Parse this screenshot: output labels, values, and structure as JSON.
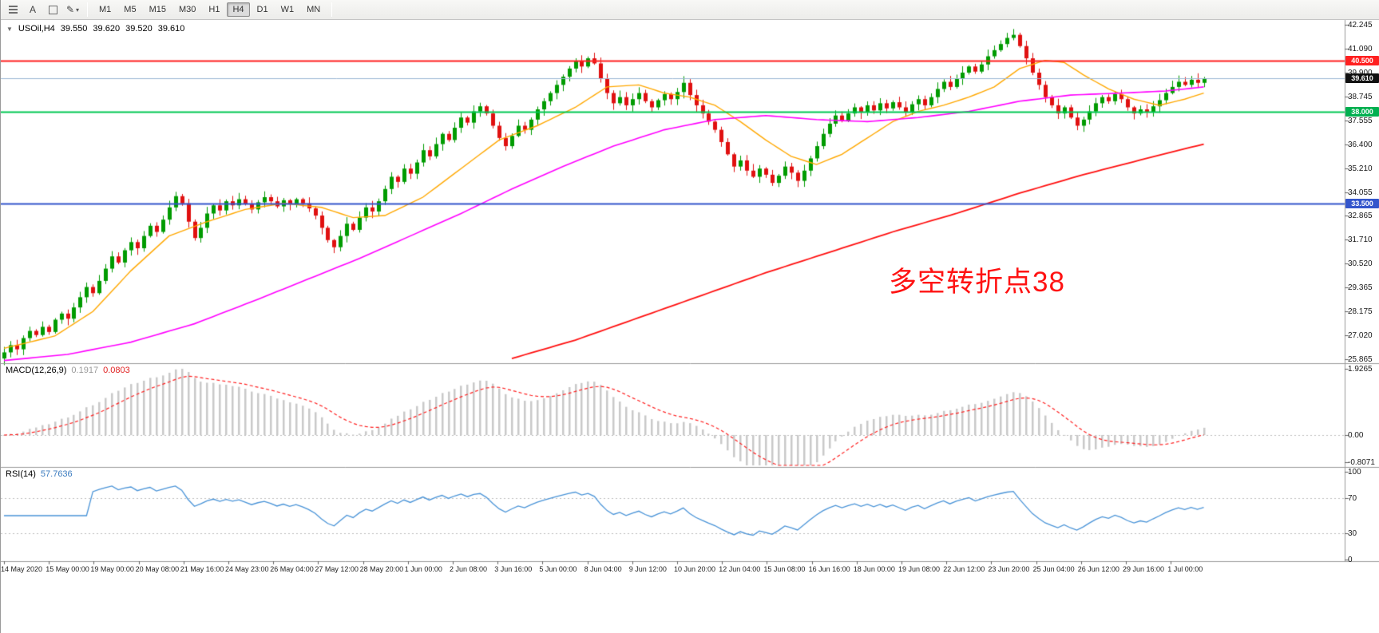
{
  "toolbar": {
    "left_icons": [
      "chart-list-icon",
      "text-tool-icon",
      "frame-tool-icon",
      "draw-color-icon",
      "chevron-down-icon"
    ],
    "text_tool_label": "A",
    "timeframes": [
      "M1",
      "M5",
      "M15",
      "M30",
      "H1",
      "H4",
      "D1",
      "W1",
      "MN"
    ],
    "active_timeframe": "H4"
  },
  "chart_header": {
    "dropdown_icon": "▼",
    "symbol_period": "USOil,H4",
    "open": "39.550",
    "high": "39.620",
    "low": "39.520",
    "close": "39.610"
  },
  "annotation": {
    "text": "多空转折点38",
    "color": "#ff1212"
  },
  "price_axis": {
    "labels": [
      "42.245",
      "41.090",
      "39.900",
      "38.745",
      "37.555",
      "36.400",
      "35.210",
      "34.055",
      "32.865",
      "31.710",
      "30.520",
      "29.365",
      "28.175",
      "27.020",
      "25.865"
    ],
    "max": 42.245,
    "min": 25.865
  },
  "levels": [
    {
      "label": "40.500",
      "price": 40.5,
      "line_color": "#ff2020",
      "tag_bg": "#ff2020",
      "line_width": 2
    },
    {
      "label": "39.610",
      "price": 39.61,
      "line_color": "#9bb7d4",
      "tag_bg": "#111111",
      "line_width": 1
    },
    {
      "label": "38.000",
      "price": 38.0,
      "line_color": "#00c853",
      "tag_bg": "#00b050",
      "line_width": 2
    },
    {
      "label": "33.500",
      "price": 33.5,
      "line_color": "#3355cc",
      "tag_bg": "#3355cc",
      "line_width": 2
    }
  ],
  "time_axis": {
    "labels": [
      "14 May 2020",
      "15 May 00:00",
      "19 May 00:00",
      "20 May 08:00",
      "21 May 16:00",
      "24 May 23:00",
      "26 May 04:00",
      "27 May 12:00",
      "28 May 20:00",
      "1 Jun 00:00",
      "2 Jun 08:00",
      "3 Jun 16:00",
      "5 Jun 00:00",
      "8 Jun 04:00",
      "9 Jun 12:00",
      "10 Jun 20:00",
      "12 Jun 04:00",
      "15 Jun 08:00",
      "16 Jun 16:00",
      "18 Jun 00:00",
      "19 Jun 08:00",
      "22 Jun 12:00",
      "23 Jun 20:00",
      "25 Jun 04:00",
      "26 Jun 12:00",
      "29 Jun 16:00",
      "1 Jul 00:00"
    ]
  },
  "macd_panel": {
    "label": "MACD(12,26,9)",
    "macd_value": "0.1917",
    "signal_value": "0.0803",
    "scale_labels": [
      "1.9265",
      "0.00",
      "-0.8071"
    ],
    "scale_max": 1.9265,
    "scale_min": -0.8071
  },
  "rsi_panel": {
    "label": "RSI(14)",
    "value": "57.7636",
    "scale_labels": [
      "100",
      "70",
      "30",
      "0"
    ],
    "scale_values": [
      100,
      70,
      30,
      0
    ],
    "level_lines": [
      70,
      30
    ]
  },
  "chart_data": {
    "type": "candlestick",
    "title": "USOil H4 candlestick chart with MA lines, MACD(12,26,9) and RSI(14) sub-panels",
    "symbol": "USOil",
    "timeframe": "H4",
    "price_range": [
      25.865,
      42.245
    ],
    "ohlc_current": {
      "open": 39.55,
      "high": 39.62,
      "low": 39.52,
      "close": 39.61
    },
    "closes": [
      26.2,
      26.55,
      26.35,
      26.9,
      27.25,
      27.05,
      27.45,
      27.2,
      27.8,
      28.1,
      27.85,
      28.4,
      28.9,
      29.4,
      29.1,
      29.7,
      30.3,
      30.9,
      30.6,
      31.2,
      31.6,
      31.3,
      31.9,
      32.4,
      32.1,
      32.7,
      33.3,
      33.85,
      33.5,
      32.6,
      31.8,
      32.3,
      33.0,
      33.4,
      33.15,
      33.6,
      33.4,
      33.7,
      33.45,
      33.2,
      33.55,
      33.8,
      33.6,
      33.35,
      33.65,
      33.45,
      33.7,
      33.5,
      33.25,
      32.9,
      32.3,
      31.7,
      31.35,
      31.9,
      32.5,
      32.2,
      32.8,
      33.3,
      33.1,
      33.6,
      34.2,
      34.8,
      34.55,
      35.2,
      34.95,
      35.5,
      36.1,
      35.8,
      36.4,
      36.9,
      36.6,
      37.2,
      37.7,
      37.45,
      38.0,
      38.25,
      37.9,
      37.3,
      36.7,
      36.3,
      36.8,
      37.3,
      37.1,
      37.6,
      38.1,
      38.5,
      38.9,
      39.3,
      39.7,
      40.1,
      40.45,
      40.2,
      40.6,
      40.35,
      39.6,
      38.9,
      38.4,
      38.7,
      38.3,
      38.6,
      38.9,
      38.5,
      38.2,
      38.55,
      38.85,
      38.6,
      38.95,
      39.4,
      38.8,
      38.3,
      37.9,
      37.5,
      37.1,
      36.5,
      35.9,
      35.3,
      35.6,
      35.1,
      34.8,
      35.2,
      34.9,
      34.5,
      34.85,
      35.3,
      35.0,
      34.6,
      35.1,
      35.7,
      36.3,
      36.9,
      37.4,
      37.8,
      37.55,
      37.9,
      38.2,
      37.95,
      38.3,
      38.05,
      38.4,
      38.15,
      38.45,
      38.2,
      37.95,
      38.35,
      38.6,
      38.3,
      38.7,
      39.1,
      39.45,
      39.2,
      39.6,
      39.9,
      40.2,
      39.95,
      40.3,
      40.7,
      41.0,
      41.3,
      41.6,
      41.75,
      41.2,
      40.6,
      39.9,
      39.3,
      38.7,
      38.3,
      37.9,
      38.2,
      37.7,
      37.3,
      37.6,
      38.0,
      38.4,
      38.7,
      38.5,
      38.85,
      38.6,
      38.2,
      37.9,
      38.1,
      37.95,
      38.25,
      38.55,
      38.9,
      39.2,
      39.45,
      39.3,
      39.55,
      39.4,
      39.61
    ],
    "ma_fast_anchors": [
      [
        0,
        26.4
      ],
      [
        8,
        27.0
      ],
      [
        14,
        28.2
      ],
      [
        20,
        30.2
      ],
      [
        26,
        31.9
      ],
      [
        32,
        32.6
      ],
      [
        38,
        33.2
      ],
      [
        44,
        33.5
      ],
      [
        50,
        33.3
      ],
      [
        55,
        32.8
      ],
      [
        60,
        32.9
      ],
      [
        66,
        33.8
      ],
      [
        72,
        35.2
      ],
      [
        78,
        36.6
      ],
      [
        84,
        37.3
      ],
      [
        90,
        38.2
      ],
      [
        95,
        39.2
      ],
      [
        100,
        39.3
      ],
      [
        104,
        38.9
      ],
      [
        108,
        38.7
      ],
      [
        112,
        38.3
      ],
      [
        116,
        37.5
      ],
      [
        120,
        36.6
      ],
      [
        124,
        35.8
      ],
      [
        128,
        35.4
      ],
      [
        132,
        35.9
      ],
      [
        136,
        36.7
      ],
      [
        140,
        37.5
      ],
      [
        144,
        38.0
      ],
      [
        148,
        38.3
      ],
      [
        152,
        38.7
      ],
      [
        156,
        39.2
      ],
      [
        160,
        40.1
      ],
      [
        164,
        40.5
      ],
      [
        167,
        40.4
      ],
      [
        170,
        39.8
      ],
      [
        174,
        39.1
      ],
      [
        178,
        38.6
      ],
      [
        182,
        38.3
      ],
      [
        186,
        38.6
      ],
      [
        189,
        38.9
      ]
    ],
    "ma_mid_anchors": [
      [
        0,
        25.8
      ],
      [
        10,
        26.1
      ],
      [
        20,
        26.7
      ],
      [
        30,
        27.6
      ],
      [
        40,
        28.8
      ],
      [
        48,
        29.8
      ],
      [
        56,
        30.8
      ],
      [
        64,
        31.9
      ],
      [
        72,
        33.0
      ],
      [
        80,
        34.2
      ],
      [
        88,
        35.3
      ],
      [
        96,
        36.3
      ],
      [
        104,
        37.1
      ],
      [
        112,
        37.6
      ],
      [
        120,
        37.8
      ],
      [
        128,
        37.6
      ],
      [
        136,
        37.5
      ],
      [
        144,
        37.7
      ],
      [
        152,
        38.0
      ],
      [
        160,
        38.5
      ],
      [
        168,
        38.8
      ],
      [
        176,
        38.9
      ],
      [
        183,
        39.0
      ],
      [
        189,
        39.2
      ]
    ],
    "ma_slow_anchors": [
      [
        80,
        25.9
      ],
      [
        90,
        26.8
      ],
      [
        100,
        27.9
      ],
      [
        110,
        29.0
      ],
      [
        120,
        30.1
      ],
      [
        130,
        31.1
      ],
      [
        140,
        32.1
      ],
      [
        150,
        33.0
      ],
      [
        160,
        34.0
      ],
      [
        170,
        34.9
      ],
      [
        180,
        35.7
      ],
      [
        189,
        36.4
      ]
    ],
    "colors": {
      "up": "#009b00",
      "down": "#e01010",
      "ma_fast": "#ffa800",
      "ma_mid": "#ff00ff",
      "ma_slow": "#ff1010",
      "macd_hist": "#c9c9c9",
      "macd_signal": "#ff2020",
      "rsi_line": "#4a94d8",
      "level_dotted": "#bdbdbd"
    }
  }
}
